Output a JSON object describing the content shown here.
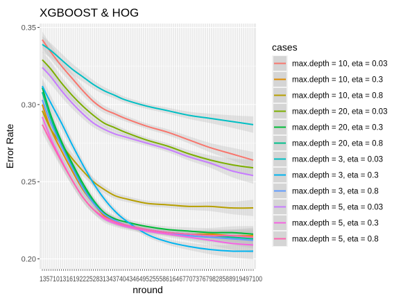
{
  "chart_data": {
    "type": "line",
    "title": "XGBOOST & HOG",
    "xlabel": "nround",
    "ylabel": "Error Rate",
    "ylim": [
      0.2,
      0.35
    ],
    "yticks": [
      "0.20",
      "0.25",
      "0.30",
      "0.35"
    ],
    "xlim": [
      1,
      100
    ],
    "x_tick_count": 100,
    "x_tick_label_text": "1357101316192225283134374043464952555861646770737679828588919497100",
    "grid": true,
    "legend_title": "cases",
    "legend_position": "right",
    "smoothed_with_confidence_band": true,
    "x": [
      1,
      5,
      10,
      15,
      20,
      25,
      30,
      35,
      40,
      50,
      60,
      70,
      80,
      90,
      100
    ],
    "series": [
      {
        "name": "max.depth = 10, eta = 0.03",
        "color": "#F8766D",
        "values": [
          0.342,
          0.334,
          0.325,
          0.317,
          0.309,
          0.302,
          0.297,
          0.294,
          0.291,
          0.286,
          0.282,
          0.277,
          0.272,
          0.268,
          0.264
        ]
      },
      {
        "name": "max.depth = 10, eta = 0.3",
        "color": "#DE8C00",
        "values": [
          0.3,
          0.284,
          0.27,
          0.257,
          0.245,
          0.236,
          0.228,
          0.224,
          0.222,
          0.219,
          0.217,
          0.216,
          0.216,
          0.215,
          0.215
        ]
      },
      {
        "name": "max.depth = 10, eta = 0.8",
        "color": "#B79F00",
        "values": [
          0.296,
          0.284,
          0.274,
          0.265,
          0.257,
          0.25,
          0.245,
          0.241,
          0.239,
          0.236,
          0.235,
          0.234,
          0.234,
          0.233,
          0.233
        ]
      },
      {
        "name": "max.depth = 20, eta = 0.03",
        "color": "#7CAE00",
        "values": [
          0.329,
          0.323,
          0.314,
          0.306,
          0.299,
          0.293,
          0.288,
          0.285,
          0.282,
          0.277,
          0.273,
          0.268,
          0.264,
          0.261,
          0.259
        ]
      },
      {
        "name": "max.depth = 20, eta = 0.3",
        "color": "#00BA38",
        "values": [
          0.311,
          0.293,
          0.276,
          0.262,
          0.249,
          0.238,
          0.23,
          0.226,
          0.224,
          0.221,
          0.219,
          0.218,
          0.217,
          0.217,
          0.216
        ]
      },
      {
        "name": "max.depth = 20, eta = 0.8",
        "color": "#00C08B",
        "values": [
          0.308,
          0.291,
          0.274,
          0.26,
          0.247,
          0.237,
          0.229,
          0.225,
          0.222,
          0.219,
          0.217,
          0.216,
          0.215,
          0.214,
          0.213
        ]
      },
      {
        "name": "max.depth = 3, eta = 0.03",
        "color": "#00BFC4",
        "values": [
          0.339,
          0.335,
          0.329,
          0.323,
          0.318,
          0.313,
          0.309,
          0.306,
          0.303,
          0.299,
          0.296,
          0.293,
          0.291,
          0.289,
          0.287
        ]
      },
      {
        "name": "max.depth = 3, eta = 0.3",
        "color": "#00B4F0",
        "values": [
          0.312,
          0.301,
          0.288,
          0.274,
          0.261,
          0.249,
          0.239,
          0.231,
          0.225,
          0.216,
          0.211,
          0.208,
          0.206,
          0.205,
          0.205
        ]
      },
      {
        "name": "max.depth = 3, eta = 0.8",
        "color": "#619CFF",
        "values": [
          0.303,
          0.288,
          0.273,
          0.259,
          0.246,
          0.236,
          0.229,
          0.225,
          0.222,
          0.219,
          0.217,
          0.215,
          0.214,
          0.213,
          0.212
        ]
      },
      {
        "name": "max.depth = 5, eta = 0.03",
        "color": "#C77CFF",
        "values": [
          0.324,
          0.318,
          0.309,
          0.301,
          0.294,
          0.288,
          0.284,
          0.281,
          0.279,
          0.275,
          0.271,
          0.266,
          0.262,
          0.257,
          0.254
        ]
      },
      {
        "name": "max.depth = 5, eta = 0.3",
        "color": "#F564E3",
        "values": [
          0.292,
          0.278,
          0.264,
          0.251,
          0.24,
          0.232,
          0.226,
          0.223,
          0.221,
          0.218,
          0.216,
          0.214,
          0.212,
          0.21,
          0.209
        ]
      },
      {
        "name": "max.depth = 5, eta = 0.8",
        "color": "#FF64B0",
        "values": [
          0.287,
          0.276,
          0.263,
          0.251,
          0.24,
          0.232,
          0.227,
          0.224,
          0.222,
          0.219,
          0.217,
          0.216,
          0.215,
          0.215,
          0.214
        ]
      }
    ]
  },
  "colors": {
    "panel_background": "#EBEBEB",
    "grid": "#FFFFFF",
    "band": "#BEBEBE",
    "tick_text": "#4D4D4D",
    "legend_key_background": "#F2F2F2"
  }
}
